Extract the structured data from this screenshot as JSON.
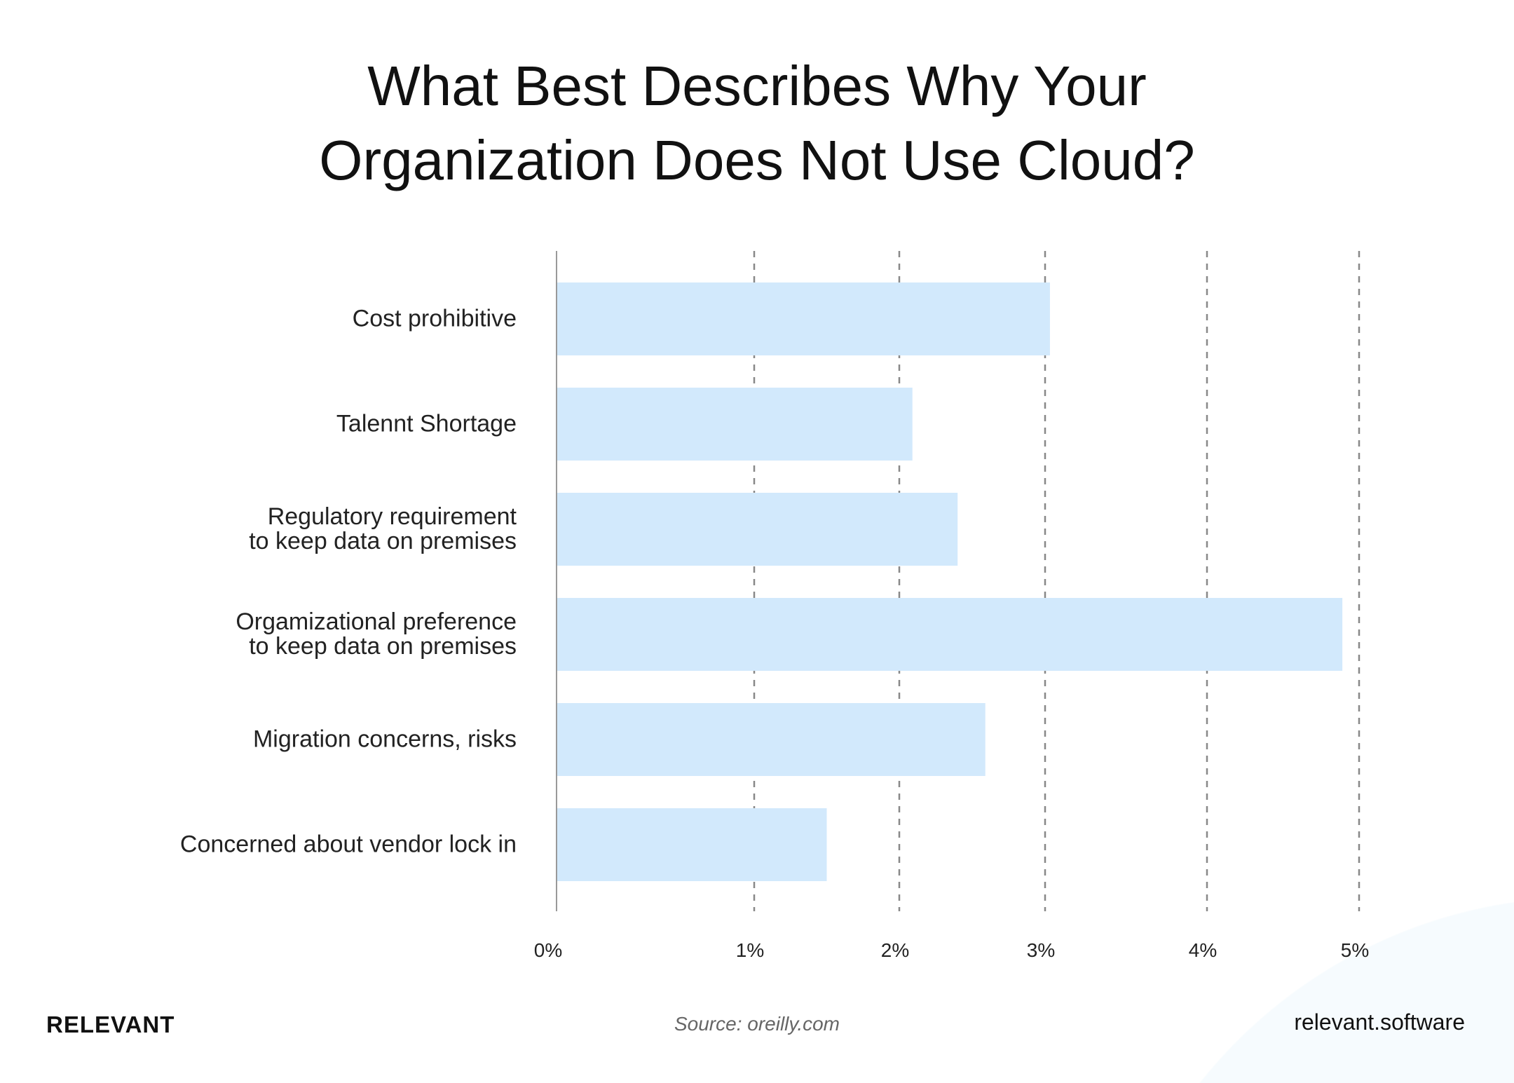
{
  "chart_data": {
    "type": "bar",
    "orientation": "horizontal",
    "title": [
      "What Best Describes Why Your",
      "Organization Does Not Use Cloud?"
    ],
    "categories": [
      "Cost prohibitive",
      "Talennt Shortage",
      "Regulatory requirement\nto keep data on premises",
      "Orgamizational preference\nto keep data on premises",
      "Migration concerns, risks",
      "Concerned about vendor lock in"
    ],
    "values": [
      3.03,
      2.09,
      2.4,
      4.89,
      2.59,
      1.5
    ],
    "unit": "%",
    "xlim": [
      0,
      5
    ],
    "x_ticks": [
      "0%",
      "1%",
      "2%",
      "3%",
      "4%",
      "5%"
    ],
    "grid": "vertical dashed",
    "bar_color": "#d2e9fc",
    "grid_color": "#888888"
  },
  "footer": {
    "brand": "RELEVANT",
    "source": "Source: oreilly.com",
    "site": "relevant.software"
  }
}
